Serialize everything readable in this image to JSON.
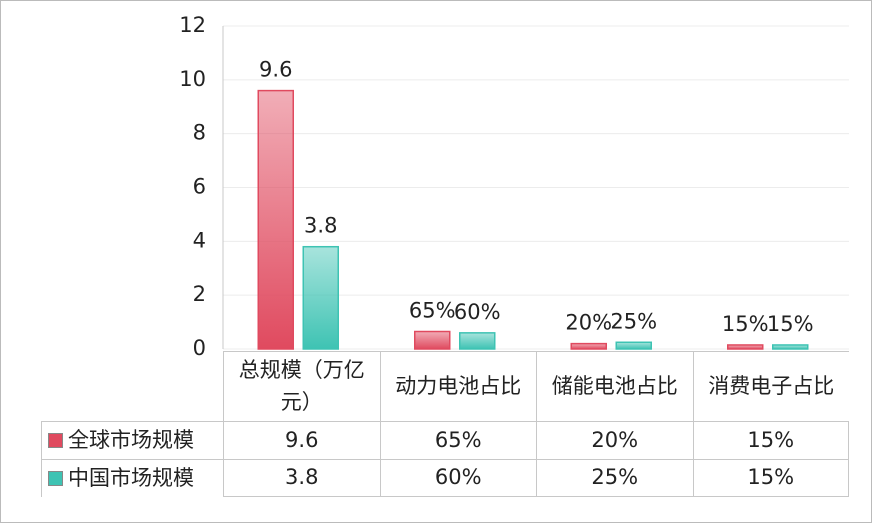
{
  "chart_data": {
    "type": "bar",
    "categories": [
      "总规模（万亿元）",
      "动力电池占比",
      "储能电池占比",
      "消费电子占比"
    ],
    "series": [
      {
        "name": "全球市场规模",
        "color": "#e04a5f",
        "values": [
          9.6,
          0.65,
          0.2,
          0.15
        ],
        "value_labels": [
          "9.6",
          "65%",
          "20%",
          "15%"
        ]
      },
      {
        "name": "中国市场规模",
        "color": "#3ec3b3",
        "values": [
          3.8,
          0.6,
          0.25,
          0.15
        ],
        "value_labels": [
          "3.8",
          "60%",
          "25%",
          "15%"
        ]
      }
    ],
    "ylim": [
      0,
      12
    ],
    "yticks": [
      0,
      2,
      4,
      6,
      8,
      10,
      12
    ],
    "grid": true
  }
}
